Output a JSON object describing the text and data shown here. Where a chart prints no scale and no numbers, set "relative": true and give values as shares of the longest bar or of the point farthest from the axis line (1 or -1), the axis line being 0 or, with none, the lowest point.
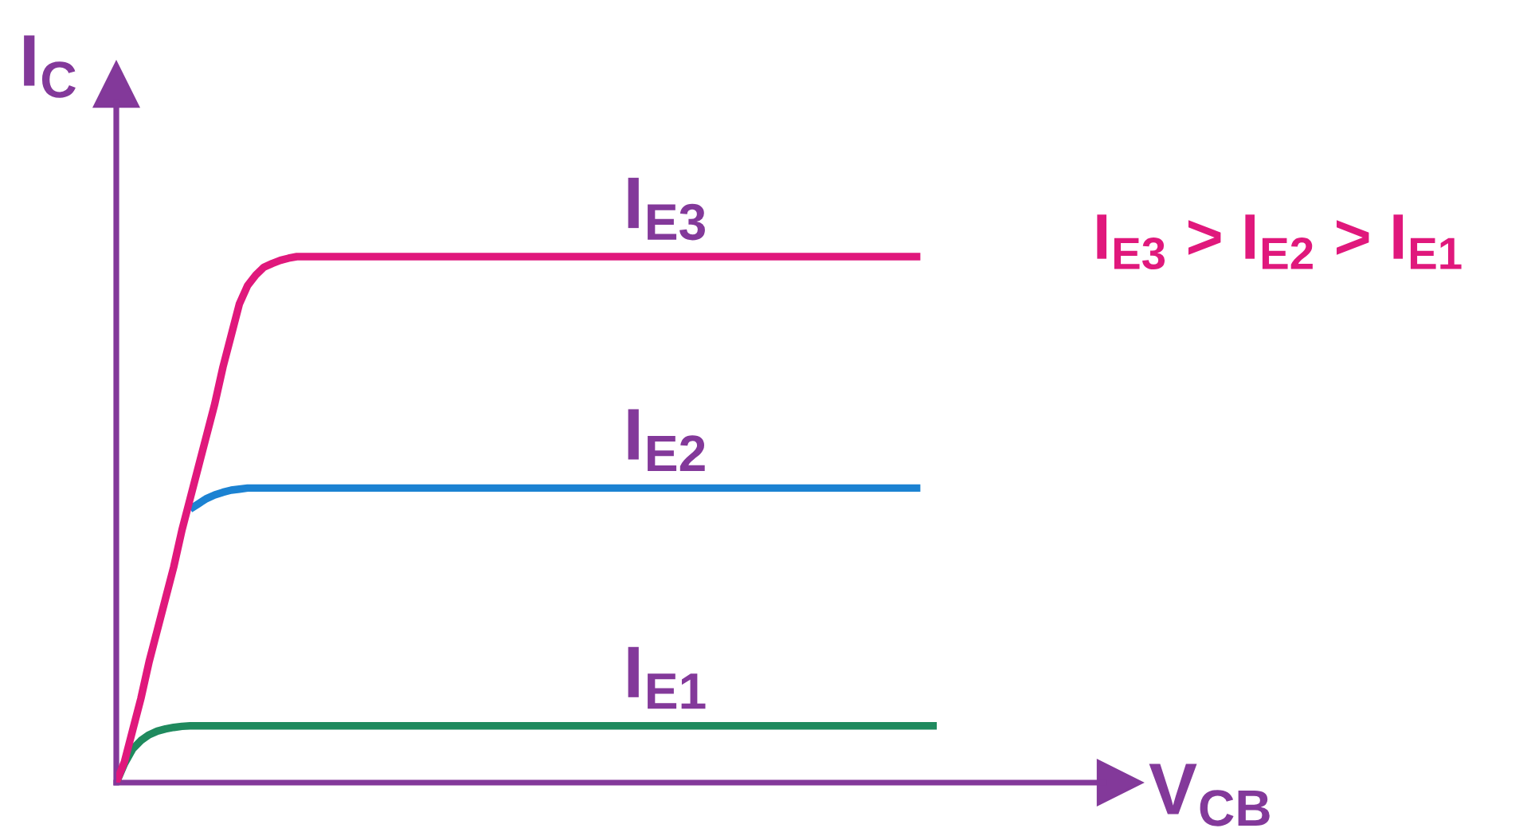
{
  "chart_data": {
    "type": "line",
    "relative": true,
    "xlabel": "V$_{CB}$",
    "ylabel": "I$_{C}$",
    "categories": [
      null,
      null,
      null,
      null,
      null,
      null,
      null,
      null,
      null,
      null,
      null,
      null,
      null,
      null,
      null,
      null,
      null,
      null,
      null,
      null,
      null,
      null,
      null,
      null,
      null,
      null,
      null,
      null,
      null,
      null,
      null,
      null,
      null,
      null,
      null,
      null,
      null,
      null,
      null,
      null,
      null,
      null,
      null,
      null,
      null,
      null,
      null,
      null,
      null,
      null,
      null,
      null,
      null,
      null,
      null,
      null,
      null,
      null,
      null,
      null,
      null,
      null,
      null,
      null,
      null,
      null,
      null,
      null,
      null,
      null,
      null,
      null,
      null,
      null,
      null,
      null,
      null,
      null,
      null,
      null,
      null,
      null,
      null,
      null,
      null,
      null,
      null,
      null,
      null,
      null,
      null,
      null,
      null,
      null,
      null,
      null,
      null,
      null,
      null,
      null,
      null
    ],
    "series": [
      {
        "name": "I$_{E1}$",
        "color": "#1f8a5e",
        "values": [
          0,
          0.036,
          0.064,
          0.08,
          0.091,
          0.098,
          0.102,
          0.105,
          0.107,
          0.108,
          0.108,
          0.108,
          0.108,
          0.108,
          0.108,
          0.108,
          0.108,
          0.108,
          0.108,
          0.108,
          0.108,
          0.108,
          0.108,
          0.108,
          0.108,
          0.108,
          0.108,
          0.108,
          0.108,
          0.108,
          0.108,
          0.108,
          0.108,
          0.108,
          0.108,
          0.108,
          0.108,
          0.108,
          0.108,
          0.108,
          0.108,
          0.108,
          0.108,
          0.108,
          0.108,
          0.108,
          0.108,
          0.108,
          0.108,
          0.108,
          0.108,
          0.108,
          0.108,
          0.108,
          0.108,
          0.108,
          0.108,
          0.108,
          0.108,
          0.108,
          0.108,
          0.108,
          0.108,
          0.108,
          0.108,
          0.108,
          0.108,
          0.108,
          0.108,
          0.108,
          0.108,
          0.108,
          0.108,
          0.108,
          0.108,
          0.108,
          0.108,
          0.108,
          0.108,
          0.108,
          0.108,
          0.108,
          0.108,
          0.108,
          0.108,
          0.108,
          0.108,
          0.108,
          0.108,
          0.108,
          0.108,
          0.108,
          0.108,
          0.108,
          0.108,
          0.108,
          0.108,
          0.108,
          0.108,
          0.108,
          0.108
        ]
      },
      {
        "name": "I$_{E2}$",
        "color": "#1b82d2",
        "values": [
          null,
          null,
          null,
          null,
          null,
          null,
          null,
          null,
          null,
          0.52,
          0.53,
          0.54,
          0.547,
          0.552,
          0.556,
          0.558,
          0.56,
          0.56,
          0.56,
          0.56,
          0.56,
          0.56,
          0.56,
          0.56,
          0.56,
          0.56,
          0.56,
          0.56,
          0.56,
          0.56,
          0.56,
          0.56,
          0.56,
          0.56,
          0.56,
          0.56,
          0.56,
          0.56,
          0.56,
          0.56,
          0.56,
          0.56,
          0.56,
          0.56,
          0.56,
          0.56,
          0.56,
          0.56,
          0.56,
          0.56,
          0.56,
          0.56,
          0.56,
          0.56,
          0.56,
          0.56,
          0.56,
          0.56,
          0.56,
          0.56,
          0.56,
          0.56,
          0.56,
          0.56,
          0.56,
          0.56,
          0.56,
          0.56,
          0.56,
          0.56,
          0.56,
          0.56,
          0.56,
          0.56,
          0.56,
          0.56,
          0.56,
          0.56,
          0.56,
          0.56,
          0.56,
          0.56,
          0.56,
          0.56,
          0.56,
          0.56,
          0.56,
          0.56,
          0.56,
          0.56,
          0.56,
          0.56,
          0.56,
          0.56,
          0.56,
          0.56,
          0.56,
          0.56,
          0.56,
          null,
          null
        ]
      },
      {
        "name": "I$_{E3}$",
        "color": "#e0187c",
        "values": [
          0,
          0.04,
          0.1,
          0.16,
          0.23,
          0.29,
          0.35,
          0.41,
          0.48,
          0.54,
          0.6,
          0.66,
          0.72,
          0.79,
          0.85,
          0.91,
          0.945,
          0.965,
          0.98,
          0.987,
          0.993,
          0.997,
          1,
          1,
          1,
          1,
          1,
          1,
          1,
          1,
          1,
          1,
          1,
          1,
          1,
          1,
          1,
          1,
          1,
          1,
          1,
          1,
          1,
          1,
          1,
          1,
          1,
          1,
          1,
          1,
          1,
          1,
          1,
          1,
          1,
          1,
          1,
          1,
          1,
          1,
          1,
          1,
          1,
          1,
          1,
          1,
          1,
          1,
          1,
          1,
          1,
          1,
          1,
          1,
          1,
          1,
          1,
          1,
          1,
          1,
          1,
          1,
          1,
          1,
          1,
          1,
          1,
          1,
          1,
          1,
          1,
          1,
          1,
          1,
          1,
          1,
          1,
          1,
          1,
          null,
          null
        ]
      }
    ],
    "annotations": [
      "I$_{E3}$ > I$_{E2}$ > I$_{E1}$"
    ]
  }
}
